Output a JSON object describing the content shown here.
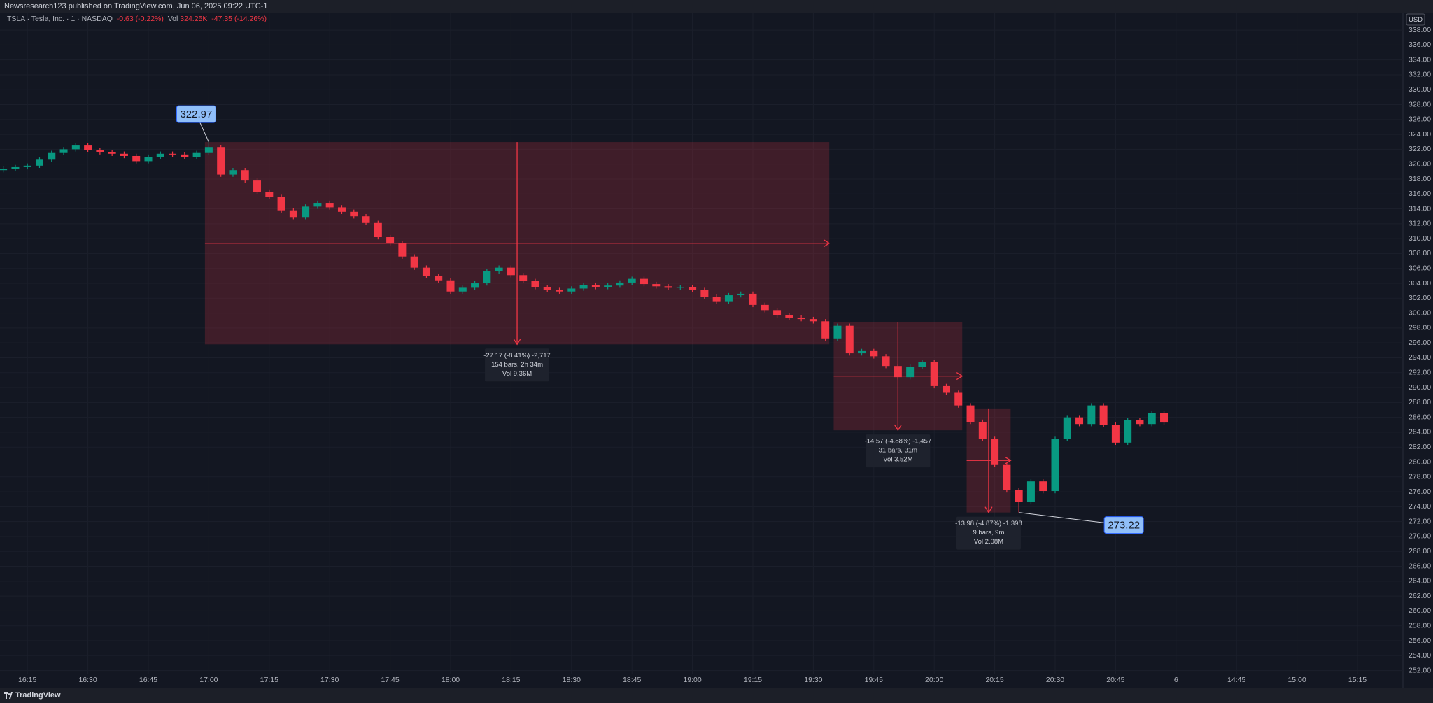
{
  "header": {
    "publisher": "Newsresearch123 published on TradingView.com, Jun 06, 2025 09:22 UTC-1"
  },
  "chart_data": {
    "type": "candlestick",
    "symbol": "TSLA · Tesla, Inc. · 1 · NASDAQ",
    "change": "-0.63 (-0.22%)",
    "volume_label": "Vol",
    "volume": "324.25K",
    "volume_change": "-47.35 (-14.26%)",
    "currency": "USD",
    "up_color": "#089981",
    "down_color": "#f23645",
    "x": [
      "16:09",
      "16:12",
      "16:15",
      "16:18",
      "16:21",
      "16:24",
      "16:27",
      "16:30",
      "16:33",
      "16:36",
      "16:39",
      "16:42",
      "16:45",
      "16:48",
      "16:51",
      "16:54",
      "16:57",
      "17:00",
      "17:03",
      "17:06",
      "17:09",
      "17:12",
      "17:15",
      "17:18",
      "17:21",
      "17:24",
      "17:27",
      "17:30",
      "17:33",
      "17:36",
      "17:39",
      "17:42",
      "17:45",
      "17:48",
      "17:51",
      "17:54",
      "17:57",
      "18:00",
      "18:03",
      "18:06",
      "18:09",
      "18:12",
      "18:15",
      "18:18",
      "18:21",
      "18:24",
      "18:27",
      "18:30",
      "18:33",
      "18:36",
      "18:39",
      "18:42",
      "18:45",
      "18:48",
      "18:51",
      "18:54",
      "18:57",
      "19:00",
      "19:03",
      "19:06",
      "19:09",
      "19:12",
      "19:15",
      "19:18",
      "19:21",
      "19:24",
      "19:27",
      "19:30",
      "19:33",
      "19:36",
      "19:39",
      "19:42",
      "19:45",
      "19:48",
      "19:51",
      "19:54",
      "19:57",
      "20:00",
      "20:03",
      "20:06",
      "20:09",
      "20:12",
      "20:15",
      "20:18",
      "20:21",
      "20:24",
      "20:27",
      "20:30",
      "20:33",
      "20:36",
      "20:39",
      "20:42",
      "20:45",
      "20:48",
      "20:51",
      "20:54",
      "20:57"
    ],
    "open": [
      319.2,
      319.4,
      319.6,
      319.8,
      320.6,
      321.5,
      322.0,
      322.5,
      321.9,
      321.6,
      321.4,
      321.1,
      320.4,
      321.0,
      321.4,
      321.3,
      321.0,
      321.5,
      322.3,
      318.6,
      319.2,
      317.8,
      316.3,
      315.6,
      313.8,
      312.9,
      314.3,
      314.8,
      314.2,
      313.6,
      313.0,
      312.1,
      310.2,
      309.4,
      307.6,
      306.1,
      305.0,
      304.4,
      302.9,
      303.4,
      304.0,
      305.6,
      306.1,
      305.1,
      304.3,
      303.5,
      303.1,
      302.9,
      303.3,
      303.8,
      303.5,
      303.7,
      304.1,
      304.6,
      303.9,
      303.6,
      303.4,
      303.5,
      303.1,
      302.2,
      301.5,
      302.4,
      302.6,
      301.1,
      300.4,
      299.7,
      299.4,
      299.2,
      298.9,
      296.6,
      298.3,
      294.6,
      294.9,
      294.2,
      292.9,
      291.4,
      292.8,
      293.4,
      290.2,
      289.3,
      287.6,
      285.4,
      283.1,
      279.6,
      276.2,
      274.6,
      277.4,
      276.1,
      283.1,
      286.0,
      285.1,
      287.6,
      285.0,
      282.6,
      285.6,
      285.1,
      286.6
    ],
    "high": [
      319.7,
      319.9,
      320.1,
      320.9,
      321.8,
      322.3,
      322.8,
      322.8,
      322.2,
      321.9,
      321.7,
      321.4,
      321.3,
      321.7,
      321.7,
      321.6,
      321.8,
      322.97,
      322.6,
      319.5,
      319.5,
      318.1,
      316.6,
      315.9,
      314.1,
      314.6,
      315.1,
      315.1,
      314.5,
      313.9,
      313.3,
      312.4,
      310.5,
      309.7,
      307.9,
      306.4,
      305.3,
      304.7,
      303.7,
      304.3,
      305.9,
      306.4,
      306.4,
      305.4,
      304.6,
      303.8,
      303.4,
      303.6,
      304.1,
      304.1,
      304.0,
      304.4,
      304.9,
      304.9,
      304.2,
      303.9,
      303.8,
      303.8,
      303.4,
      302.5,
      302.7,
      302.9,
      302.9,
      301.4,
      300.7,
      300.0,
      299.7,
      299.5,
      299.2,
      298.6,
      298.6,
      295.2,
      295.2,
      294.5,
      293.2,
      293.1,
      293.7,
      293.7,
      290.5,
      289.6,
      287.9,
      285.7,
      283.4,
      279.9,
      276.5,
      277.7,
      277.7,
      283.4,
      286.3,
      286.3,
      287.9,
      287.9,
      285.3,
      285.9,
      285.9,
      286.9,
      286.9
    ],
    "low": [
      318.9,
      319.1,
      319.3,
      319.5,
      320.3,
      321.2,
      321.7,
      321.6,
      321.3,
      321.1,
      320.8,
      320.1,
      320.1,
      320.7,
      321.0,
      320.7,
      320.7,
      321.2,
      318.3,
      318.3,
      317.5,
      316.0,
      315.3,
      313.5,
      312.6,
      312.6,
      314.0,
      313.9,
      313.3,
      312.7,
      311.8,
      309.9,
      309.1,
      307.3,
      305.8,
      304.7,
      304.1,
      302.6,
      302.6,
      303.1,
      303.7,
      305.3,
      304.8,
      304.0,
      303.2,
      302.8,
      302.6,
      302.6,
      303.0,
      303.2,
      303.2,
      303.4,
      303.8,
      303.6,
      303.3,
      303.1,
      303.1,
      302.8,
      301.9,
      301.2,
      301.2,
      302.1,
      300.8,
      300.1,
      299.4,
      299.1,
      298.9,
      298.6,
      296.3,
      296.3,
      294.3,
      294.3,
      293.9,
      292.6,
      291.1,
      291.1,
      292.5,
      289.9,
      289.0,
      287.3,
      285.1,
      282.8,
      279.3,
      275.9,
      273.22,
      274.3,
      275.8,
      275.8,
      282.8,
      284.8,
      284.8,
      284.7,
      282.3,
      282.3,
      284.8,
      284.8,
      285.0
    ],
    "close": [
      319.4,
      319.6,
      319.8,
      320.6,
      321.5,
      322.0,
      322.5,
      321.9,
      321.6,
      321.4,
      321.1,
      320.4,
      321.0,
      321.4,
      321.3,
      321.0,
      321.5,
      322.3,
      318.6,
      319.2,
      317.8,
      316.3,
      315.6,
      313.8,
      312.9,
      314.3,
      314.8,
      314.2,
      313.6,
      313.0,
      312.1,
      310.2,
      309.4,
      307.6,
      306.1,
      305.0,
      304.4,
      302.9,
      303.4,
      304.0,
      305.6,
      306.1,
      305.1,
      304.3,
      303.5,
      303.1,
      302.9,
      303.3,
      303.8,
      303.5,
      303.7,
      304.1,
      304.6,
      303.9,
      303.6,
      303.4,
      303.5,
      303.1,
      302.2,
      301.5,
      302.4,
      302.6,
      301.1,
      300.4,
      299.7,
      299.4,
      299.2,
      298.9,
      296.6,
      298.3,
      294.6,
      294.9,
      294.2,
      292.9,
      291.4,
      292.8,
      293.4,
      290.2,
      289.3,
      287.6,
      285.4,
      283.1,
      279.6,
      276.2,
      274.6,
      277.4,
      276.1,
      283.1,
      286.0,
      285.1,
      287.6,
      285.0,
      282.6,
      285.6,
      285.1,
      286.6,
      285.3
    ],
    "ylim": [
      251.5,
      339.5
    ],
    "yticks": [
      {
        "value": 252,
        "label": "252.00"
      },
      {
        "value": 254,
        "label": "254.00"
      },
      {
        "value": 256,
        "label": "256.00"
      },
      {
        "value": 258,
        "label": "258.00"
      },
      {
        "value": 260,
        "label": "260.00"
      },
      {
        "value": 262,
        "label": "262.00"
      },
      {
        "value": 264,
        "label": "264.00"
      },
      {
        "value": 266,
        "label": "266.00"
      },
      {
        "value": 268,
        "label": "268.00"
      },
      {
        "value": 270,
        "label": "270.00"
      },
      {
        "value": 272,
        "label": "272.00"
      },
      {
        "value": 274,
        "label": "274.00"
      },
      {
        "value": 276,
        "label": "276.00"
      },
      {
        "value": 278,
        "label": "278.00"
      },
      {
        "value": 280,
        "label": "280.00"
      },
      {
        "value": 282,
        "label": "282.00"
      },
      {
        "value": 284,
        "label": "284.00"
      },
      {
        "value": 286,
        "label": "286.00"
      },
      {
        "value": 288,
        "label": "288.00"
      },
      {
        "value": 290,
        "label": "290.00"
      },
      {
        "value": 292,
        "label": "292.00"
      },
      {
        "value": 294,
        "label": "294.00"
      },
      {
        "value": 296,
        "label": "296.00"
      },
      {
        "value": 298,
        "label": "298.00"
      },
      {
        "value": 300,
        "label": "300.00"
      },
      {
        "value": 302,
        "label": "302.00"
      },
      {
        "value": 304,
        "label": "304.00"
      },
      {
        "value": 306,
        "label": "306.00"
      },
      {
        "value": 308,
        "label": "308.00"
      },
      {
        "value": 310,
        "label": "310.00"
      },
      {
        "value": 312,
        "label": "312.00"
      },
      {
        "value": 314,
        "label": "314.00"
      },
      {
        "value": 316,
        "label": "316.00"
      },
      {
        "value": 318,
        "label": "318.00"
      },
      {
        "value": 320,
        "label": "320.00"
      },
      {
        "value": 322,
        "label": "322.00"
      },
      {
        "value": 324,
        "label": "324.00"
      },
      {
        "value": 326,
        "label": "326.00"
      },
      {
        "value": 328,
        "label": "328.00"
      },
      {
        "value": 330,
        "label": "330.00"
      },
      {
        "value": 332,
        "label": "332.00"
      },
      {
        "value": 334,
        "label": "334.00"
      },
      {
        "value": 336,
        "label": "336.00"
      },
      {
        "value": 338,
        "label": "338.00"
      }
    ],
    "xticks": [
      "16:15",
      "16:30",
      "16:45",
      "17:00",
      "17:15",
      "17:30",
      "17:45",
      "18:00",
      "18:15",
      "18:30",
      "18:45",
      "19:00",
      "19:15",
      "19:30",
      "19:45",
      "20:00",
      "20:15",
      "20:30",
      "20:45",
      "6",
      "14:45",
      "15:00",
      "15:15"
    ],
    "grid": true,
    "measures": [
      {
        "x": [
          "17:00",
          "19:33"
        ],
        "y": [
          322.97,
          295.8
        ],
        "lines": [
          "-27.17 (-8.41%) -2,717",
          "154 bars, 2h 34m",
          "Vol 9.36M"
        ]
      },
      {
        "x": [
          "19:36",
          "20:06"
        ],
        "y": [
          298.83,
          284.26
        ],
        "lines": [
          "-14.57 (-4.88%) -1,457",
          "31 bars, 31m",
          "Vol 3.52M"
        ]
      },
      {
        "x": [
          "20:09",
          "20:18"
        ],
        "y": [
          287.2,
          273.22
        ],
        "lines": [
          "-13.98 (-4.87%) -1,398",
          "9 bars, 9m",
          "Vol 2.08M"
        ]
      }
    ],
    "callouts": [
      {
        "x": "17:00",
        "value": 322.97
      },
      {
        "x": "20:21",
        "value": 273.22
      }
    ]
  },
  "footer": {
    "brand": "TradingView"
  }
}
